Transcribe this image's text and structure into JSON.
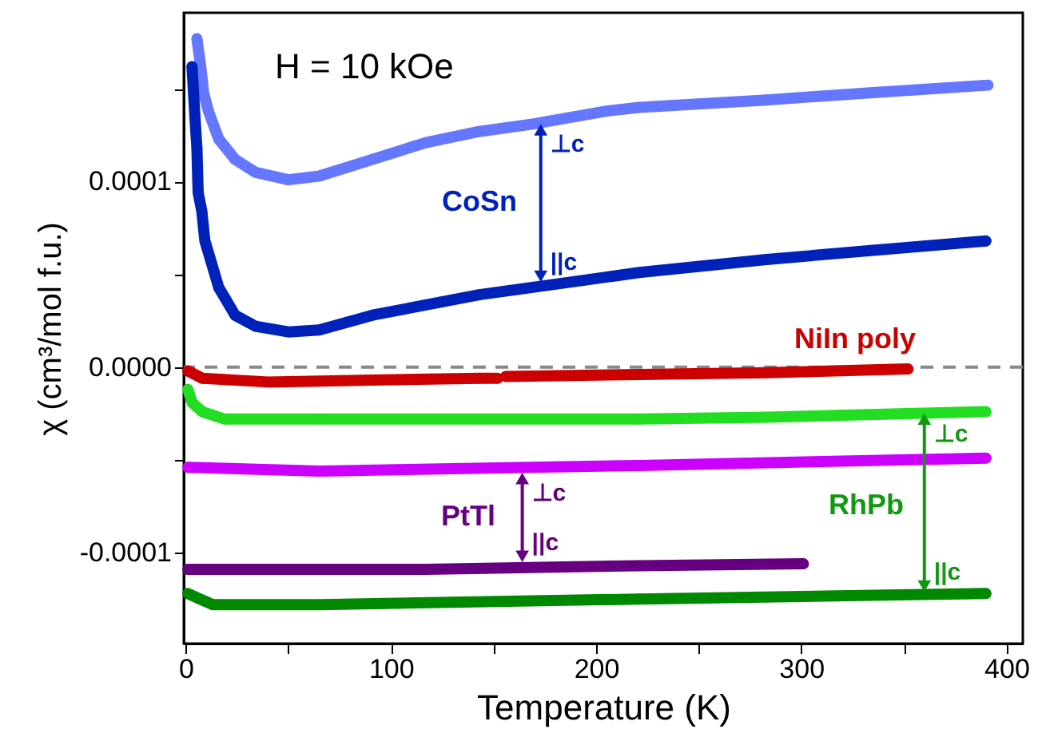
{
  "chart_data": {
    "type": "line",
    "xlabel": "Temperature (K)",
    "ylabel": "χ (cm³/mol f.u.)",
    "xlim": [
      -1,
      408
    ],
    "ylim": [
      -0.000149,
      0.000191
    ],
    "xticks": [
      0,
      {
        "value": 50,
        "label": null
      },
      100,
      {
        "value": 150,
        "label": null
      },
      200,
      {
        "value": 250,
        "label": null
      },
      300,
      {
        "value": 350,
        "label": null
      },
      400
    ],
    "yticks": [
      -0.0001,
      {
        "value": -5e-05,
        "label": null
      },
      {
        "value": 0,
        "label": "0.0000"
      },
      {
        "value": 5e-05,
        "label": null
      },
      0.0001,
      {
        "value": 0.00015,
        "label": null
      }
    ],
    "grid": false,
    "marker": "circle",
    "line_style": "solid",
    "series": [
      {
        "color": "#6677ff",
        "x": [
          5.4,
          7,
          8,
          8.6,
          11,
          16,
          24,
          34,
          50,
          65,
          91,
          117,
          143,
          169,
          205,
          221,
          283,
          335,
          391
        ],
        "values": [
          0.000177,
          0.000164,
          0.000155,
          0.000148,
          0.000138,
          0.000123,
          0.000112,
          0.000105,
          0.000101,
          0.000103,
          0.000112,
          0.000121,
          0.000127,
          0.000131,
          0.000138,
          0.00014,
          0.000144,
          0.000148,
          0.000152
        ]
      },
      {
        "color": "#0022bb",
        "x": [
          3,
          4.7,
          5.4,
          6,
          7.8,
          8.6,
          9.3,
          12,
          16,
          24,
          34,
          50,
          65,
          91,
          143,
          195,
          221,
          283,
          335,
          390
        ],
        "values": [
          0.000162,
          0.00013,
          0.000118,
          9.4e-05,
          8.4e-05,
          7.5e-05,
          6.8e-05,
          5.8e-05,
          4.3e-05,
          2.8e-05,
          2.2e-05,
          1.9e-05,
          2e-05,
          2.8e-05,
          3.9e-05,
          4.7e-05,
          5.1e-05,
          5.8e-05,
          6.3e-05,
          6.8e-05
        ]
      },
      {
        "color": "#cc0000",
        "x": [
          1,
          8,
          40,
          91,
          143,
          152,
          153,
          156,
          221,
          283,
          352
        ],
        "values": [
          -2e-06,
          -6e-06,
          -8e-06,
          -7e-06,
          -6e-06,
          -6e-06,
          null,
          -5e-06,
          -4e-06,
          -3e-06,
          -1e-06
        ]
      },
      {
        "color": "#22dd22",
        "x": [
          1,
          3,
          8,
          19,
          65,
          143,
          221,
          283,
          390
        ],
        "values": [
          -1.2e-05,
          -1.9e-05,
          -2.4e-05,
          -2.8e-05,
          -2.8e-05,
          -2.8e-05,
          -2.8e-05,
          -2.7e-05,
          -2.4e-05
        ]
      },
      {
        "color": "#cc00ff",
        "x": [
          1,
          65,
          221,
          390
        ],
        "values": [
          -5.4e-05,
          -5.6e-05,
          -5.3e-05,
          -4.9e-05
        ]
      },
      {
        "color": "#660080",
        "x": [
          1,
          117,
          221,
          301
        ],
        "values": [
          -0.000109,
          -0.000109,
          -0.000107,
          -0.000106
        ]
      },
      {
        "color": "#008800",
        "x": [
          1,
          13,
          65,
          221,
          390
        ],
        "values": [
          -0.000122,
          -0.000128,
          -0.000128,
          -0.000125,
          -0.000122
        ]
      }
    ],
    "ref_lines": [
      {
        "axis": "y",
        "value": 0,
        "color": "#888888",
        "line_style": "dashed"
      }
    ],
    "annotations": [
      "H = 10 kOe",
      "CoSn",
      {
        "text": "⊥c",
        "x": 173,
        "y": 0.000128
      },
      {
        "text": "||c",
        "x": 173,
        "y": 4.9e-05
      },
      "NiIn poly",
      "PtTl",
      {
        "text": "⊥c",
        "x": 164,
        "y": -6e-05
      },
      {
        "text": "||c",
        "x": 164,
        "y": -0.000102
      },
      "RhPb",
      {
        "text": "⊥c",
        "x": 360,
        "y": -2.8e-05
      },
      {
        "text": "||c",
        "x": 360,
        "y": -0.000118
      }
    ]
  }
}
